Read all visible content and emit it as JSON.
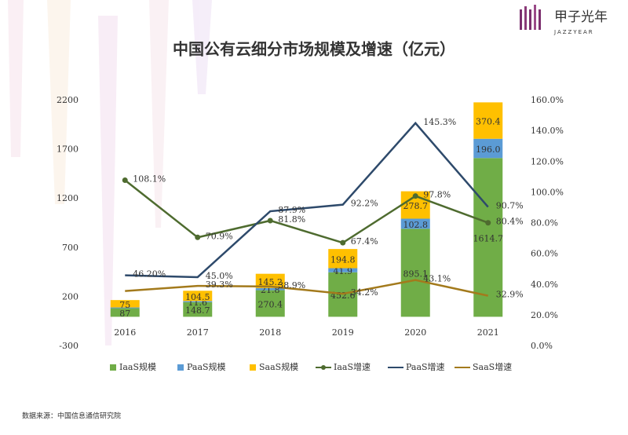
{
  "brand": {
    "name": "甲子光年",
    "subtitle": "JAZZYEAR"
  },
  "source": "数据来源：中国信息通信研究院",
  "chart_data": {
    "type": "bar",
    "stacked": true,
    "title": "中国公有云细分市场规模及增速（亿元）",
    "categories": [
      "2016",
      "2017",
      "2018",
      "2019",
      "2020",
      "2021"
    ],
    "ylim": [
      -300,
      2200
    ],
    "yticks": [
      -300,
      200,
      700,
      1200,
      1700,
      2200
    ],
    "y2lim": [
      0,
      160
    ],
    "y2ticks": [
      {
        "value": 0,
        "label": "0.0%"
      },
      {
        "value": 20,
        "label": "20.0%"
      },
      {
        "value": 40,
        "label": "40.0%"
      },
      {
        "value": 60,
        "label": "60.0%"
      },
      {
        "value": 80,
        "label": "80.0%"
      },
      {
        "value": 100,
        "label": "100.0%"
      },
      {
        "value": 120,
        "label": "120.0%"
      },
      {
        "value": 140,
        "label": "140.0%"
      },
      {
        "value": 160,
        "label": "160.0%"
      }
    ],
    "grid": false,
    "legend": "bottom",
    "series": [
      {
        "name": "IaaS规模",
        "type": "bar",
        "color": "#70ad47",
        "values": [
          87,
          148.7,
          270.4,
          452.6,
          895.1,
          1614.7
        ]
      },
      {
        "name": "PaaS规模",
        "type": "bar",
        "color": "#5b9bd5",
        "values": [
          8,
          11.6,
          21.8,
          41.9,
          102.8,
          196
        ],
        "value_labels": [
          null,
          "11.6",
          "21.8",
          "41.9",
          "102.8",
          "196.0"
        ]
      },
      {
        "name": "SaaS规模",
        "type": "bar",
        "color": "#ffc000",
        "values": [
          75,
          104.5,
          145.2,
          194.8,
          278.7,
          370.4
        ]
      },
      {
        "name": "IaaS增速",
        "type": "line",
        "axis": "y2",
        "marker": true,
        "color": "#4e6b2f",
        "values": [
          108.1,
          70.9,
          81.8,
          67.4,
          97.8,
          80.4
        ],
        "value_labels": [
          "108.1%",
          "70.9%",
          "81.8%",
          "67.4%",
          "97.8%",
          "80.4%"
        ]
      },
      {
        "name": "PaaS增速",
        "type": "line",
        "axis": "y2",
        "marker": false,
        "color": "#2e4a6b",
        "values": [
          46.2,
          45,
          87.9,
          92.2,
          145.3,
          90.7
        ],
        "value_labels": [
          "46.20%",
          "45.0%",
          "87.9%",
          "92.2%",
          "145.3%",
          "90.7%"
        ]
      },
      {
        "name": "SaaS增速",
        "type": "line",
        "axis": "y2",
        "marker": false,
        "color": "#a37a1c",
        "values": [
          36,
          39.3,
          38.9,
          34.2,
          43.1,
          32.9
        ],
        "value_labels": [
          null,
          "39.3%",
          "38.9%",
          "34.2%",
          "43.1%",
          "32.9%"
        ]
      }
    ]
  }
}
